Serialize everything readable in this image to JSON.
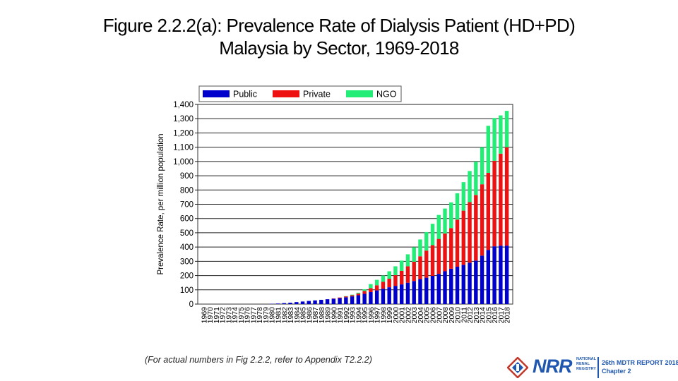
{
  "title_line1": "Figure 2.2.2(a): Prevalence Rate of Dialysis Patient (HD+PD)",
  "title_line2": "Malaysia by Sector, 1969-2018",
  "caption": "(For actual numbers in Fig 2.2.2, refer to Appendix T2.2.2)",
  "logo": {
    "name": "NRR",
    "registry_line1": "NATIONAL",
    "registry_line2": "RENAL",
    "registry_line3": "REGISTRY",
    "report": "26th MDTR REPORT 2018",
    "chapter": "Chapter 2"
  },
  "colors": {
    "Public": "#0000cc",
    "Private": "#ee1111",
    "NGO": "#22ee77"
  },
  "chart_data": {
    "type": "bar",
    "stacked": true,
    "title": "",
    "xlabel": "",
    "ylabel": "Prevalence Rate, per million population",
    "ylim": [
      0,
      1400
    ],
    "yticks": [
      0,
      100,
      200,
      300,
      400,
      500,
      600,
      700,
      800,
      900,
      1000,
      1100,
      1200,
      1300,
      1400
    ],
    "ytick_labels": [
      "0",
      "100",
      "200",
      "300",
      "400",
      "500",
      "600",
      "700",
      "800",
      "900",
      "1,000",
      "1,100",
      "1,200",
      "1,300",
      "1,400"
    ],
    "grid": true,
    "legend": "top",
    "categories": [
      "1969",
      "1970",
      "1971",
      "1972",
      "1973",
      "1974",
      "1975",
      "1976",
      "1977",
      "1978",
      "1979",
      "1980",
      "1981",
      "1982",
      "1983",
      "1984",
      "1985",
      "1986",
      "1987",
      "1988",
      "1989",
      "1990",
      "1991",
      "1992",
      "1993",
      "1994",
      "1995",
      "1996",
      "1997",
      "1998",
      "1999",
      "2000",
      "2001",
      "2002",
      "2003",
      "2004",
      "2005",
      "2006",
      "2007",
      "2008",
      "2009",
      "2010",
      "2011",
      "2012",
      "2013",
      "2014",
      "2015",
      "2016",
      "2017",
      "2018"
    ],
    "series": [
      {
        "name": "Public",
        "values": [
          0,
          0,
          0,
          0,
          0,
          0,
          0,
          0,
          0,
          0,
          0,
          2,
          4,
          7,
          10,
          14,
          18,
          22,
          26,
          30,
          34,
          38,
          42,
          48,
          54,
          62,
          72,
          84,
          96,
          108,
          118,
          128,
          138,
          150,
          162,
          175,
          185,
          198,
          212,
          230,
          248,
          262,
          275,
          290,
          305,
          340,
          380,
          405,
          410,
          410
        ]
      },
      {
        "name": "Private",
        "values": [
          0,
          0,
          0,
          0,
          0,
          0,
          0,
          0,
          0,
          0,
          0,
          0,
          0,
          0,
          0,
          0,
          0,
          0,
          0,
          0,
          0,
          2,
          4,
          6,
          8,
          12,
          20,
          28,
          36,
          48,
          60,
          75,
          95,
          115,
          135,
          160,
          190,
          215,
          245,
          265,
          285,
          330,
          380,
          425,
          460,
          500,
          540,
          600,
          645,
          690
        ]
      },
      {
        "name": "NGO",
        "values": [
          0,
          0,
          0,
          0,
          0,
          0,
          0,
          0,
          0,
          0,
          0,
          0,
          0,
          0,
          0,
          0,
          0,
          0,
          0,
          0,
          0,
          0,
          0,
          2,
          4,
          6,
          12,
          28,
          38,
          44,
          52,
          62,
          72,
          84,
          102,
          118,
          130,
          150,
          168,
          175,
          180,
          185,
          200,
          218,
          234,
          260,
          330,
          300,
          268,
          255
        ]
      }
    ]
  }
}
